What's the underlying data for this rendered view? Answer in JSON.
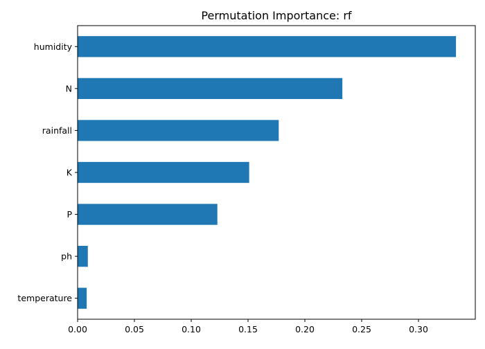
{
  "chart_data": {
    "type": "bar",
    "orientation": "horizontal",
    "title": "Permutation Importance: rf",
    "xlabel": "",
    "ylabel": "",
    "categories": [
      "humidity",
      "N",
      "rainfall",
      "K",
      "P",
      "ph",
      "temperature"
    ],
    "values": [
      0.333,
      0.233,
      0.177,
      0.151,
      0.123,
      0.009,
      0.008
    ],
    "xlim": [
      0.0,
      0.35
    ],
    "xticks": [
      "0.00",
      "0.05",
      "0.10",
      "0.15",
      "0.20",
      "0.25",
      "0.30"
    ],
    "bar_color": "#1f77b4",
    "grid": false,
    "legend": "none"
  }
}
